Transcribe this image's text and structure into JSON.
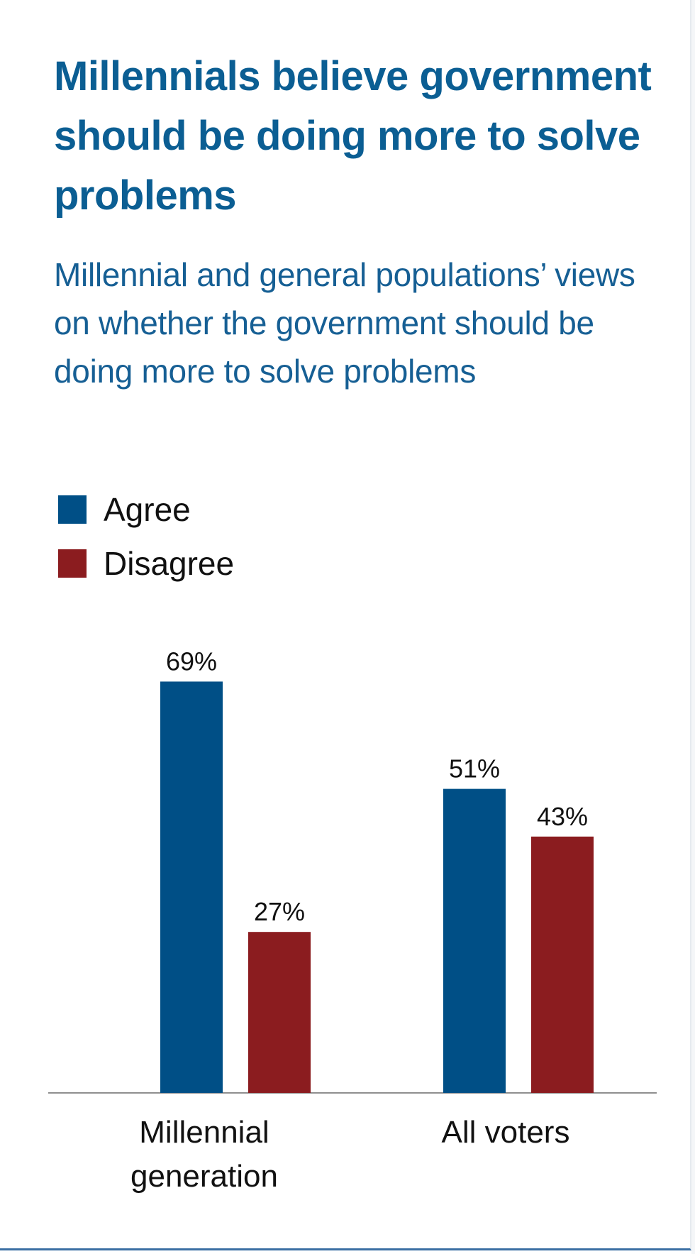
{
  "chart_data": {
    "type": "bar",
    "title": "Millennials believe government should be doing more to solve problems",
    "subtitle": "Millennial and general populations’ views on whether the government should be doing more to solve problems",
    "categories": [
      [
        "Millennial",
        "generation"
      ],
      [
        "All voters"
      ]
    ],
    "series": [
      {
        "name": "Agree",
        "color": "#004f86",
        "values": [
          69,
          51
        ],
        "labels": [
          "69%",
          "51%"
        ]
      },
      {
        "name": "Disagree",
        "color": "#8b1c1f",
        "values": [
          27,
          43
        ],
        "labels": [
          "27%",
          "43%"
        ]
      }
    ],
    "ylim": [
      0,
      100
    ],
    "grid": false,
    "legend_position": "top-left"
  }
}
